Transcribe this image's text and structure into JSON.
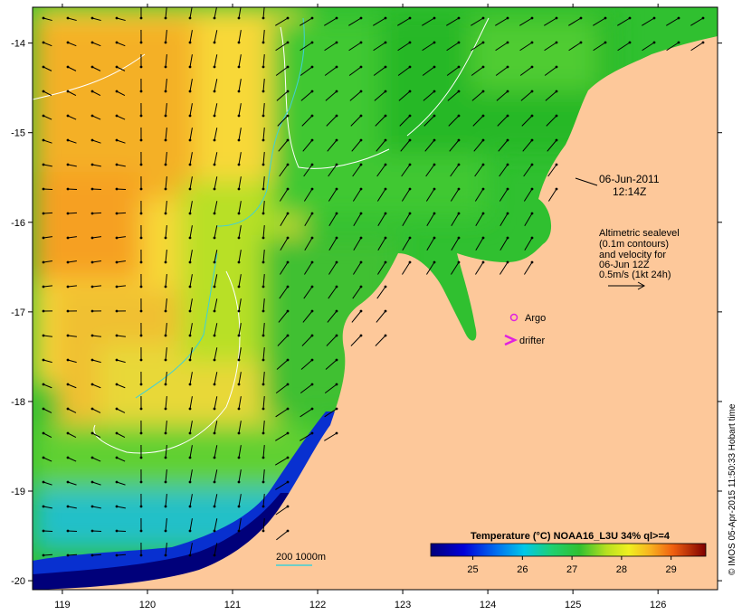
{
  "map": {
    "lon_ticks": [
      "119",
      "120",
      "121",
      "122",
      "123",
      "124",
      "125",
      "126"
    ],
    "lat_ticks": [
      "-14",
      "-15",
      "-16",
      "-17",
      "-18",
      "-19",
      "-20"
    ],
    "lon_range": [
      118.65,
      126.7
    ],
    "lat_range": [
      -20.1,
      -13.6
    ],
    "land_color": "#fdc89a",
    "depth_legend": "200  1000m",
    "depth_color": "#3fd0d8"
  },
  "annotations": {
    "date": "06-Jun-2011",
    "time": "12:14Z",
    "altimetry_lines": [
      "Altimetric sealevel",
      "(0.1m contours)",
      "and velocity for",
      "06-Jun 12Z",
      "0.5m/s (1kt 24h)"
    ],
    "argo_label": "Argo",
    "drifter_label": "drifter",
    "argo_color": "#e020e0",
    "drifter_color": "#e020e0"
  },
  "colorbar": {
    "title": "Temperature (°C) NOAA16_L3U 34% ql>=4",
    "ticks": [
      "25",
      "26",
      "27",
      "28",
      "29"
    ],
    "range": [
      24.15,
      29.7
    ]
  },
  "credit": "© IMOS 05-Apr-2015 11:50:33 Hobart time"
}
